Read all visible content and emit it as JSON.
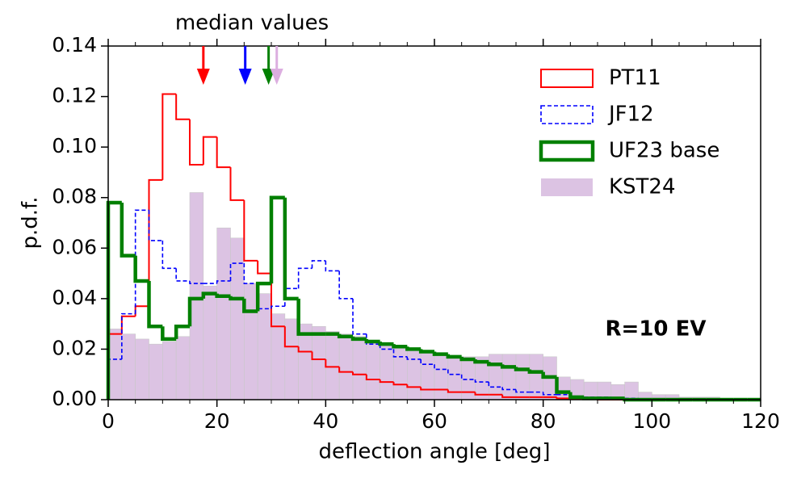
{
  "chart_data": {
    "type": "histogram",
    "xlabel": "deflection angle [deg]",
    "ylabel": "p.d.f.",
    "top_label": "median values",
    "annotation": "R=10 EV",
    "xlim": [
      0,
      120
    ],
    "ylim": [
      0,
      0.14
    ],
    "xticks": [
      0,
      20,
      40,
      60,
      80,
      100,
      120
    ],
    "yticks": [
      {
        "value": 0,
        "label": "0.00"
      },
      0.02,
      0.04,
      0.06,
      0.08,
      {
        "value": 0.1,
        "label": "0.10"
      },
      0.12,
      0.14
    ],
    "legend": "upper right",
    "bins": [
      0,
      2.5,
      5,
      7.5,
      10,
      12.5,
      15,
      17.5,
      20,
      22.5,
      25,
      27.5,
      30,
      32.5,
      35,
      37.5,
      40,
      42.5,
      45,
      47.5,
      50,
      52.5,
      55,
      57.5,
      60,
      62.5,
      65,
      67.5,
      70,
      72.5,
      75,
      77.5,
      80,
      82.5,
      85,
      87.5,
      90,
      92.5,
      95,
      97.5,
      100,
      102.5,
      105,
      107.5,
      110,
      112.5,
      115,
      117.5,
      120
    ],
    "series": [
      {
        "name": "KST24",
        "color": "#dcc3e3",
        "style": "bar",
        "values": [
          0.028,
          0.026,
          0.024,
          0.022,
          0.023,
          0.025,
          0.082,
          0.045,
          0.068,
          0.064,
          0.046,
          0.042,
          0.034,
          0.032,
          0.03,
          0.029,
          0.027,
          0.026,
          0.025,
          0.023,
          0.022,
          0.021,
          0.02,
          0.019,
          0.018,
          0.017,
          0.017,
          0.017,
          0.018,
          0.018,
          0.018,
          0.018,
          0.017,
          0.009,
          0.008,
          0.007,
          0.007,
          0.006,
          0.007,
          0.003,
          0.002,
          0.002,
          0.001,
          0.001,
          0.001,
          0.0005,
          0,
          0
        ]
      },
      {
        "name": "PT11",
        "color": "#ff0000",
        "style": "step",
        "values": [
          0.026,
          0.033,
          0.037,
          0.087,
          0.121,
          0.111,
          0.093,
          0.104,
          0.092,
          0.079,
          0.055,
          0.05,
          0.029,
          0.021,
          0.019,
          0.016,
          0.013,
          0.011,
          0.01,
          0.008,
          0.007,
          0.006,
          0.005,
          0.004,
          0.004,
          0.003,
          0.003,
          0.002,
          0.002,
          0.001,
          0.001,
          0.001,
          0.001,
          0.0005,
          0.0005,
          0.0005,
          0,
          0,
          0,
          0,
          0,
          0,
          0,
          0,
          0,
          0,
          0,
          0
        ]
      },
      {
        "name": "JF12",
        "color": "#0000ff",
        "style": "step-dashed",
        "values": [
          0.016,
          0.034,
          0.075,
          0.063,
          0.052,
          0.047,
          0.046,
          0.046,
          0.047,
          0.054,
          0.046,
          0.036,
          0.037,
          0.044,
          0.052,
          0.055,
          0.051,
          0.04,
          0.026,
          0.022,
          0.02,
          0.017,
          0.016,
          0.014,
          0.012,
          0.01,
          0.008,
          0.007,
          0.005,
          0.004,
          0.003,
          0.003,
          0.002,
          0.002,
          0.001,
          0.001,
          0.001,
          0.0005,
          0.0005,
          0,
          0,
          0,
          0,
          0,
          0,
          0,
          0,
          0
        ]
      },
      {
        "name": "UF23 base",
        "color": "#008000",
        "style": "step-thick",
        "values": [
          0.078,
          0.057,
          0.047,
          0.029,
          0.024,
          0.029,
          0.04,
          0.042,
          0.041,
          0.04,
          0.035,
          0.046,
          0.08,
          0.04,
          0.026,
          0.026,
          0.026,
          0.025,
          0.024,
          0.023,
          0.022,
          0.021,
          0.02,
          0.019,
          0.018,
          0.017,
          0.016,
          0.015,
          0.014,
          0.013,
          0.012,
          0.011,
          0.009,
          0.003,
          0.001,
          0.0005,
          0.0005,
          0.0005,
          0,
          0,
          0,
          0,
          0,
          0,
          0,
          0,
          0,
          0
        ]
      }
    ],
    "medians": [
      {
        "name": "PT11",
        "value": 17.5,
        "color": "#ff0000"
      },
      {
        "name": "JF12",
        "value": 25.2,
        "color": "#0000ff"
      },
      {
        "name": "UF23 base",
        "value": 29.5,
        "color": "#008000"
      },
      {
        "name": "KST24",
        "value": 31,
        "color": "#dcaee0"
      }
    ]
  }
}
